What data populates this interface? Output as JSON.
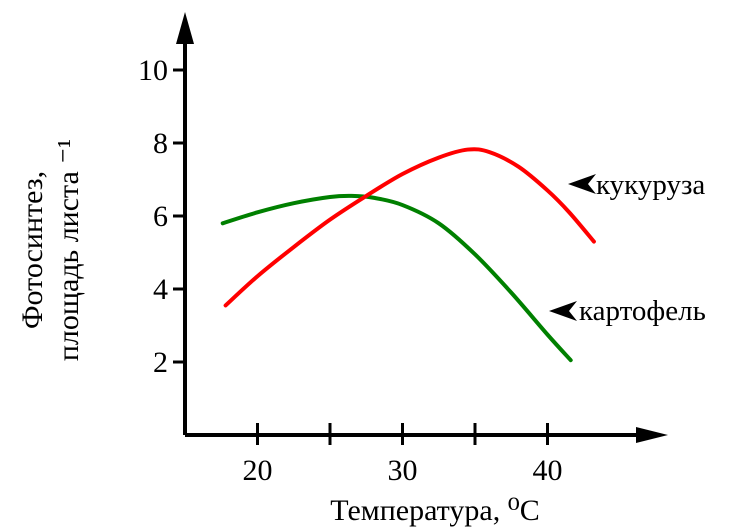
{
  "chart_data": {
    "type": "line",
    "xlabel": "Температура, ⁰C",
    "ylabel_lines": [
      "Фотосинтез,",
      "площадь листа ⁻¹"
    ],
    "xlim": [
      15,
      48
    ],
    "ylim": [
      0,
      11.2
    ],
    "xticks": [
      20,
      30,
      40
    ],
    "xtick_labels": [
      "20",
      "30",
      "40"
    ],
    "yticks": [
      2,
      4,
      6,
      8,
      10
    ],
    "ytick_labels": [
      "2",
      "4",
      "6",
      "8",
      "10"
    ],
    "x_minor_ticks": [
      25,
      35
    ],
    "grid": false,
    "series": [
      {
        "name": "кукуруза",
        "color": "#ff0000",
        "x": [
          17.8,
          20,
          22.5,
          25,
          27.5,
          30,
          32.5,
          34.5,
          36,
          38,
          40,
          41.5,
          43.2
        ],
        "y": [
          3.55,
          4.35,
          5.15,
          5.9,
          6.55,
          7.15,
          7.6,
          7.82,
          7.75,
          7.35,
          6.7,
          6.1,
          5.3
        ]
      },
      {
        "name": "картофель",
        "color": "#008000",
        "x": [
          17.6,
          20,
          22.5,
          25,
          26.5,
          28,
          30,
          32.5,
          35,
          37.5,
          40,
          41.6
        ],
        "y": [
          5.8,
          6.1,
          6.35,
          6.52,
          6.55,
          6.5,
          6.3,
          5.8,
          4.95,
          3.9,
          2.75,
          2.05
        ]
      }
    ]
  }
}
